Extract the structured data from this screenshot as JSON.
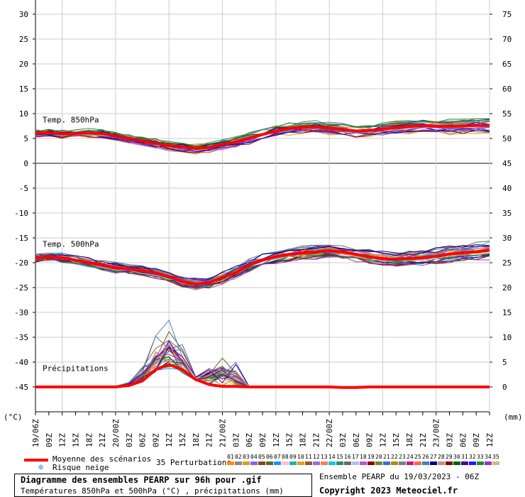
{
  "chart_data": {
    "type": "line",
    "left_axis_unit": "(°C)",
    "right_axis_unit": "(mm)",
    "left_ticks": [
      30,
      25,
      20,
      15,
      10,
      5,
      0,
      -5,
      -10,
      -15,
      -20,
      -25,
      -30,
      -35,
      -40,
      -45
    ],
    "right_ticks": [
      75,
      70,
      65,
      60,
      55,
      50,
      45,
      40,
      35,
      30,
      25,
      20,
      15,
      10,
      5,
      0
    ],
    "x_ticks": [
      "19/06Z",
      "09Z",
      "12Z",
      "15Z",
      "18Z",
      "21Z",
      "20/00Z",
      "03Z",
      "06Z",
      "09Z",
      "12Z",
      "15Z",
      "18Z",
      "21Z",
      "21/00Z",
      "03Z",
      "06Z",
      "09Z",
      "12Z",
      "15Z",
      "18Z",
      "21Z",
      "22/00Z",
      "03Z",
      "06Z",
      "09Z",
      "12Z",
      "15Z",
      "18Z",
      "21Z",
      "23/00Z",
      "03Z",
      "06Z",
      "09Z",
      "12Z"
    ],
    "panels": {
      "t850": {
        "label": "Temp. 850hPa",
        "mean": [
          6,
          6.2,
          5.9,
          6,
          6.1,
          6,
          5.5,
          5,
          4.5,
          4,
          3.5,
          3.3,
          3,
          3.2,
          3.8,
          4.3,
          5,
          5.8,
          6.5,
          7,
          7.2,
          7.3,
          7.1,
          6.8,
          6.5,
          6.6,
          6.9,
          7.2,
          7.4,
          7.6,
          7.5,
          7.4,
          7.5,
          7.6,
          7.6
        ],
        "spread": 1.4
      },
      "t500": {
        "label": "Temp. 500hPa",
        "mean": [
          -19,
          -18.8,
          -19,
          -19.5,
          -20,
          -20.5,
          -21,
          -21.3,
          -21.6,
          -22,
          -22.8,
          -23.8,
          -24.3,
          -24,
          -23,
          -22,
          -20.5,
          -19.5,
          -18.8,
          -18.3,
          -18,
          -17.8,
          -17.6,
          -17.8,
          -18.3,
          -18.8,
          -19.2,
          -19.3,
          -19.2,
          -19,
          -18.7,
          -18.3,
          -18,
          -17.8,
          -17.5
        ],
        "spread": 1.6
      },
      "precip": {
        "label": "Précipitations",
        "mean_mm": [
          0,
          0,
          0,
          0,
          0,
          0,
          0,
          0.3,
          1.2,
          3.5,
          4.5,
          3.5,
          1.5,
          0.5,
          0.1,
          0.1,
          0,
          0,
          0,
          0,
          0,
          0,
          0,
          -0.1,
          -0.1,
          0,
          0,
          0,
          0,
          0,
          0,
          0,
          0,
          0,
          0
        ],
        "peaks_mm": [
          0,
          0,
          0,
          0,
          0,
          0,
          0.2,
          1.0,
          4.5,
          12.5,
          16.5,
          9,
          2,
          6,
          9,
          7,
          0.2,
          0,
          0,
          0,
          0,
          0,
          0,
          0,
          0,
          0,
          0,
          0,
          0,
          0,
          0,
          0,
          0,
          0.2,
          0
        ]
      }
    }
  },
  "legend": {
    "mean_label": "Moyenne des scénarios",
    "snow_label": "Risque neige",
    "perturbations_label": "35 Perturbations",
    "member_numbers": [
      "01",
      "02",
      "03",
      "04",
      "05",
      "06",
      "07",
      "08",
      "09",
      "10",
      "11",
      "12",
      "13",
      "14",
      "15",
      "16",
      "17",
      "18",
      "19",
      "20",
      "21",
      "22",
      "23",
      "24",
      "25",
      "26",
      "27",
      "28",
      "29",
      "30",
      "31",
      "32",
      "33",
      "34",
      "35"
    ],
    "member_colors": [
      "#ff8c00",
      "#888888",
      "#d4a017",
      "#7b68ee",
      "#8b4513",
      "#556b2f",
      "#1e90ff",
      "#ffc0cb",
      "#20b2aa",
      "#daa520",
      "#a0522d",
      "#9370db",
      "#ff7f50",
      "#00ced1",
      "#2e8b57",
      "#696969",
      "#b0c4de",
      "#ba55d3",
      "#8b0000",
      "#6b8e23",
      "#4169e1",
      "#b8860b",
      "#708090",
      "#c71585",
      "#ff6347",
      "#4682b4",
      "#000080",
      "#bc8f8f",
      "#800000",
      "#006400",
      "#4b0082",
      "#1c1cff",
      "#228b22",
      "#9932cc",
      "#d2b48c"
    ],
    "mean_color": "#ff0000"
  },
  "footer": {
    "title": "Diagramme des ensembles PEARP sur 96h pour .gif",
    "subtitle": "Températures 850hPa et 500hPa (°C) , précipitations (mm)",
    "run": "Ensemble PEARP du 19/03/2023 - 06Z",
    "copyright": "Copyright 2023 Meteociel.fr"
  }
}
